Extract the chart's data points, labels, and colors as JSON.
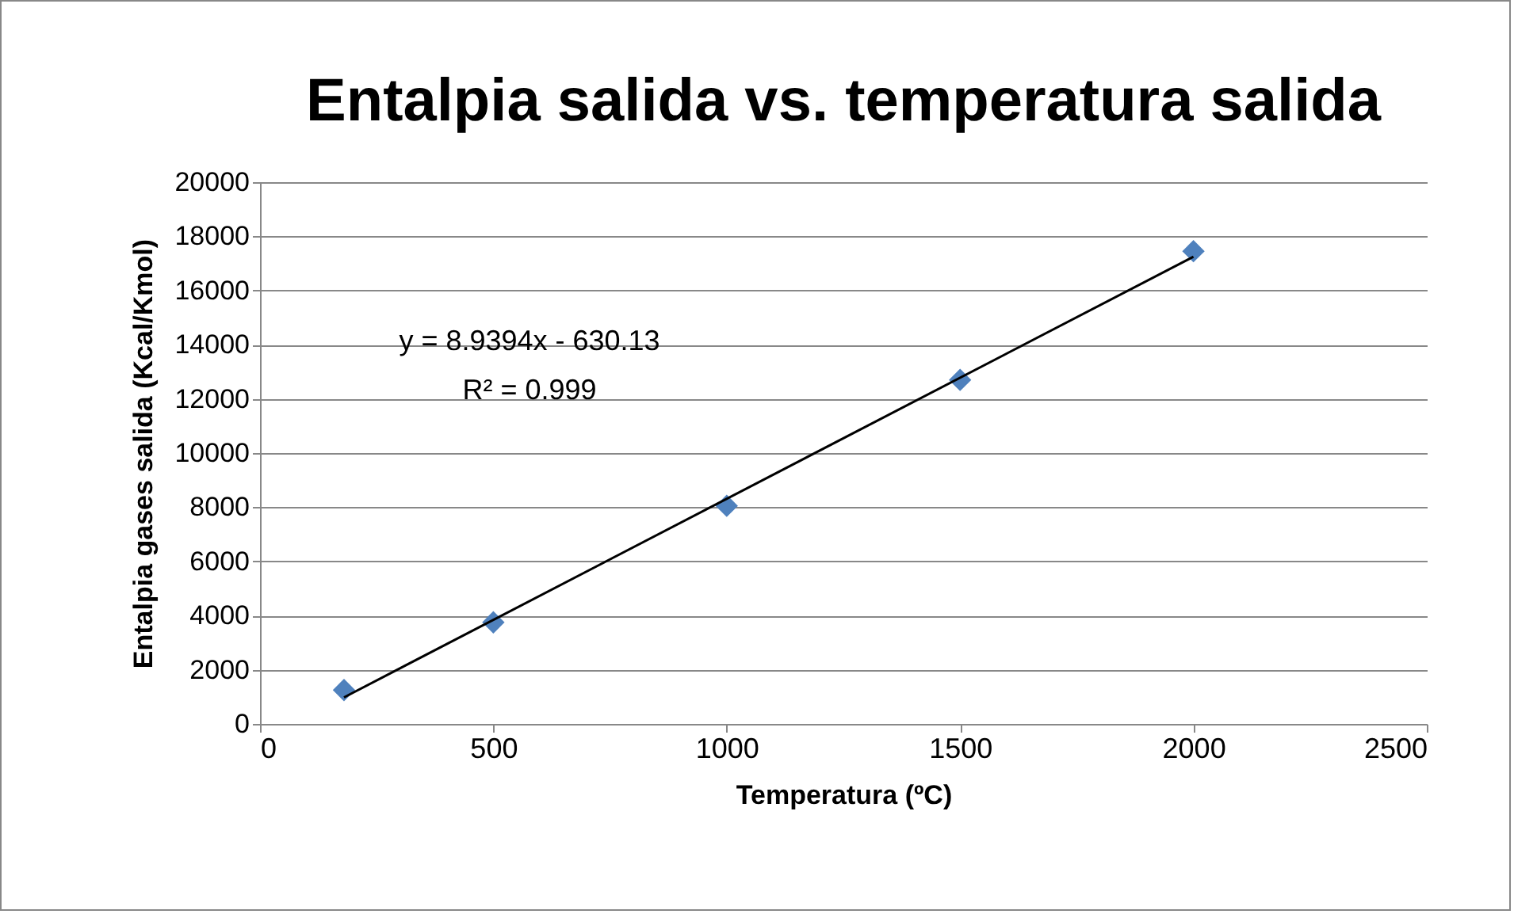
{
  "chart_data": {
    "type": "scatter",
    "title": "Entalpia salida vs. temperatura salida",
    "xlabel": "Temperatura (ºC)",
    "ylabel": "Entalpia gases salida (Kcal/Kmol)",
    "x": [
      180,
      500,
      1000,
      1500,
      2000
    ],
    "series": [
      {
        "color": "#4f81bd",
        "values": [
          1250,
          3750,
          8050,
          12700,
          17450
        ],
        "marker": "diamond"
      },
      {
        "type": "line",
        "color": "#000000",
        "x": [
          180,
          2000
        ],
        "values": [
          980,
          17250
        ],
        "marker": "none"
      }
    ],
    "xlim": [
      0,
      2500
    ],
    "xticks": [
      0,
      500,
      1000,
      1500,
      2000,
      2500
    ],
    "ylim": [
      0,
      20000
    ],
    "yticks": [
      0,
      2000,
      4000,
      6000,
      8000,
      10000,
      12000,
      14000,
      16000,
      18000,
      20000
    ],
    "grid": "y",
    "annotations": [
      "y = 8.9394x - 630.13",
      "R² = 0.999"
    ]
  }
}
